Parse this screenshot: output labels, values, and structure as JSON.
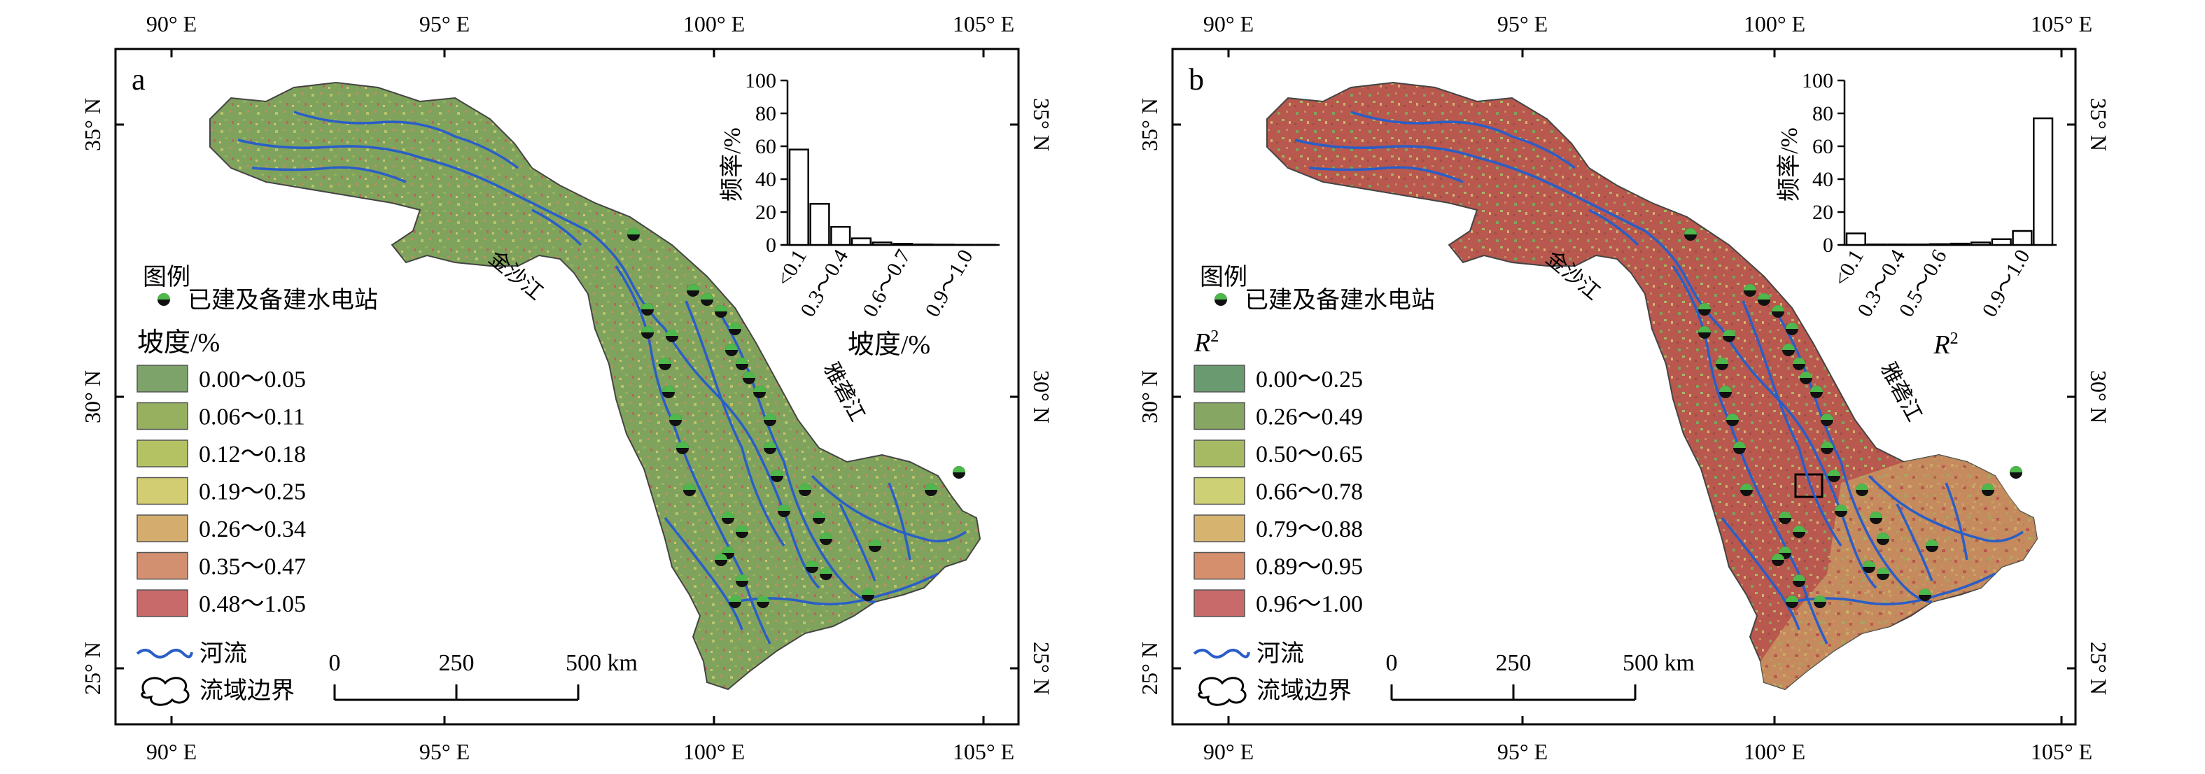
{
  "panels": [
    {
      "id": "a",
      "label": "a",
      "lon_labels": [
        "90° E",
        "95° E",
        "100° E",
        "105° E"
      ],
      "lat_labels": [
        "35° N",
        "30° N",
        "25° N"
      ],
      "legend": {
        "header": "图例",
        "station": "已建及备建水电站",
        "var_title": "坡度/%",
        "classes": [
          {
            "label": "0.00～0.05",
            "color": "#7ea36a"
          },
          {
            "label": "0.06～0.11",
            "color": "#97b060"
          },
          {
            "label": "0.12～0.18",
            "color": "#b5c264"
          },
          {
            "label": "0.19～0.25",
            "color": "#d2cc72"
          },
          {
            "label": "0.26～0.34",
            "color": "#d4ad6e"
          },
          {
            "label": "0.35～0.47",
            "color": "#d39070"
          },
          {
            "label": "0.48～1.05",
            "color": "#c96a6a"
          }
        ],
        "river": "河流",
        "boundary": "流域边界"
      },
      "river_names": [
        "金沙江",
        "雅砻江"
      ],
      "scale": {
        "ticks": [
          "0",
          "250",
          "500 km"
        ]
      },
      "hist": {
        "y_title": "频率/%",
        "x_title": "坡度/%",
        "x_tick_labels": [
          "<0.1",
          "0.3～0.4",
          "0.6～0.7",
          "0.9～1.0"
        ]
      }
    },
    {
      "id": "b",
      "label": "b",
      "lon_labels": [
        "90° E",
        "95° E",
        "100° E",
        "105° E"
      ],
      "lat_labels": [
        "35° N",
        "30° N",
        "25° N"
      ],
      "legend": {
        "header": "图例",
        "station": "已建及备建水电站",
        "var_title": "R²",
        "classes": [
          {
            "label": "0.00～0.25",
            "color": "#6a9a70"
          },
          {
            "label": "0.26～0.49",
            "color": "#86a663"
          },
          {
            "label": "0.50～0.65",
            "color": "#a5ba63"
          },
          {
            "label": "0.66～0.78",
            "color": "#cdd075"
          },
          {
            "label": "0.79～0.88",
            "color": "#d6b470"
          },
          {
            "label": "0.89～0.95",
            "color": "#d58f6c"
          },
          {
            "label": "0.96～1.00",
            "color": "#c96a6a"
          }
        ],
        "river": "河流",
        "boundary": "流域边界"
      },
      "river_names": [
        "金沙江",
        "雅砻江"
      ],
      "scale": {
        "ticks": [
          "0",
          "250",
          "500 km"
        ]
      },
      "hist": {
        "y_title": "频率/%",
        "x_title": "R²",
        "x_tick_labels": [
          "<0.1",
          "0.3～0.4",
          "0.5～0.6",
          "0.9～1.0"
        ]
      }
    }
  ],
  "chart_data": [
    {
      "type": "bar",
      "panel": "a",
      "xlabel": "坡度/%",
      "ylabel": "频率/%",
      "categories": [
        "<0.1",
        "",
        "0.3～0.4",
        "",
        "",
        "0.6～0.7",
        "",
        "",
        "0.9～1.0",
        ""
      ],
      "values": [
        58,
        25,
        11,
        4,
        1.5,
        0.7,
        0.3,
        0.2,
        0.1,
        0.1
      ],
      "ylim": [
        0,
        100
      ],
      "yticks": [
        0,
        20,
        40,
        60,
        80,
        100
      ]
    },
    {
      "type": "bar",
      "panel": "b",
      "xlabel": "R²",
      "ylabel": "频率/%",
      "categories": [
        "<0.1",
        "",
        "0.3～0.4",
        "",
        "0.5～0.6",
        "",
        "",
        "",
        "0.9～1.0",
        ""
      ],
      "values": [
        7,
        0.3,
        0.3,
        0.3,
        0.5,
        0.8,
        1.5,
        3.5,
        8.5,
        77
      ],
      "ylim": [
        0,
        100
      ],
      "yticks": [
        0,
        20,
        40,
        60,
        80,
        100
      ]
    }
  ]
}
